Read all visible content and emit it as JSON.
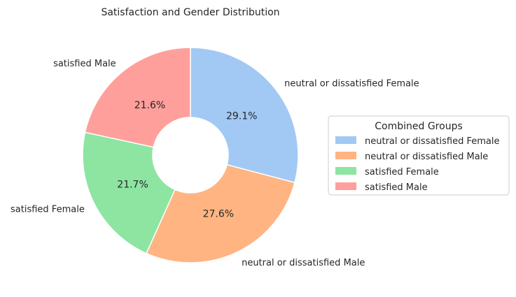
{
  "chart_data": {
    "type": "pie",
    "title": "Satisfaction and Gender Distribution",
    "categories": [
      "neutral or dissatisfied Female",
      "neutral or dissatisfied Male",
      "satisfied Female",
      "satisfied Male"
    ],
    "values": [
      29.1,
      27.6,
      21.7,
      21.6
    ],
    "value_labels": [
      "29.1%",
      "27.6%",
      "21.7%",
      "21.6%"
    ],
    "colors": [
      "#a1c9f4",
      "#ffb482",
      "#8de5a1",
      "#ff9f9b"
    ],
    "donut": true,
    "start_angle_deg": 90,
    "direction": "clockwise",
    "legend": {
      "title": "Combined Groups",
      "placement": "right",
      "entries": [
        "neutral or dissatisfied Female",
        "neutral or dissatisfied Male",
        "satisfied Female",
        "satisfied Male"
      ]
    }
  }
}
